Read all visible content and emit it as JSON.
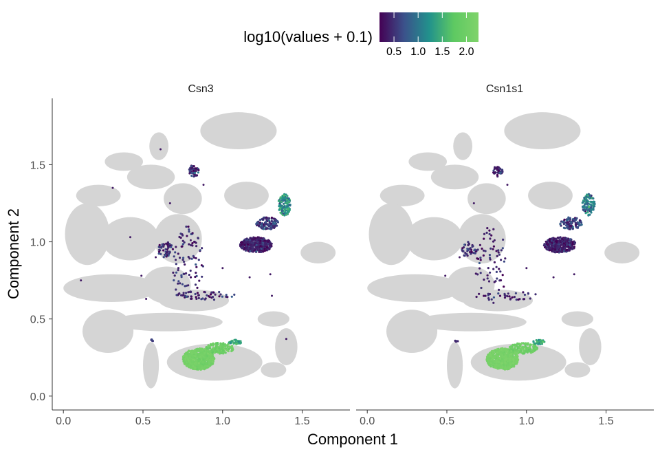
{
  "chart_data": {
    "type": "scatter",
    "xlabel": "Component 1",
    "ylabel": "Component 2",
    "xlim": [
      -0.07,
      1.8
    ],
    "ylim": [
      -0.09,
      1.93
    ],
    "x_ticks": [
      0.0,
      0.5,
      1.0,
      1.5
    ],
    "x_tick_labels": [
      "0.0",
      "0.5",
      "1.0",
      "1.5"
    ],
    "y_ticks": [
      0.0,
      0.5,
      1.0,
      1.5
    ],
    "y_tick_labels": [
      "0.0",
      "0.5",
      "1.0",
      "1.5"
    ],
    "grid": false,
    "legend": {
      "title": "log10(values + 0.1)",
      "placement": "top",
      "range": [
        0.2,
        2.25
      ],
      "ticks": [
        0.5,
        1.0,
        1.5,
        2.0
      ],
      "tick_labels": [
        "0.5",
        "1.0",
        "1.5",
        "2.0"
      ],
      "colormap": [
        "#440154",
        "#3b528b",
        "#21918c",
        "#5ec962",
        "#7fd36a"
      ]
    },
    "background_color": "#d3d3d3",
    "background_clusters": [
      {
        "cx": 1.1,
        "cy": 1.72,
        "rx": 0.24,
        "ry": 0.12
      },
      {
        "cx": 0.6,
        "cy": 1.62,
        "rx": 0.06,
        "ry": 0.09
      },
      {
        "cx": 0.38,
        "cy": 1.52,
        "rx": 0.12,
        "ry": 0.06
      },
      {
        "cx": 0.55,
        "cy": 1.42,
        "rx": 0.15,
        "ry": 0.08
      },
      {
        "cx": 0.22,
        "cy": 1.3,
        "rx": 0.14,
        "ry": 0.07
      },
      {
        "cx": 0.75,
        "cy": 1.28,
        "rx": 0.12,
        "ry": 0.1
      },
      {
        "cx": 1.15,
        "cy": 1.3,
        "rx": 0.14,
        "ry": 0.09
      },
      {
        "cx": 0.15,
        "cy": 1.05,
        "rx": 0.14,
        "ry": 0.2
      },
      {
        "cx": 0.42,
        "cy": 1.02,
        "rx": 0.18,
        "ry": 0.14
      },
      {
        "cx": 0.72,
        "cy": 1.02,
        "rx": 0.15,
        "ry": 0.16
      },
      {
        "cx": 1.6,
        "cy": 0.93,
        "rx": 0.11,
        "ry": 0.07
      },
      {
        "cx": 0.3,
        "cy": 0.7,
        "rx": 0.3,
        "ry": 0.09
      },
      {
        "cx": 0.65,
        "cy": 0.72,
        "rx": 0.15,
        "ry": 0.12
      },
      {
        "cx": 0.82,
        "cy": 0.62,
        "rx": 0.22,
        "ry": 0.07
      },
      {
        "cx": 0.65,
        "cy": 0.48,
        "rx": 0.35,
        "ry": 0.06
      },
      {
        "cx": 0.28,
        "cy": 0.42,
        "rx": 0.16,
        "ry": 0.14
      },
      {
        "cx": 0.55,
        "cy": 0.2,
        "rx": 0.05,
        "ry": 0.15
      },
      {
        "cx": 0.95,
        "cy": 0.22,
        "rx": 0.3,
        "ry": 0.12
      },
      {
        "cx": 1.32,
        "cy": 0.5,
        "rx": 0.1,
        "ry": 0.05
      },
      {
        "cx": 1.4,
        "cy": 0.32,
        "rx": 0.07,
        "ry": 0.12
      },
      {
        "cx": 1.32,
        "cy": 0.17,
        "rx": 0.08,
        "ry": 0.05
      }
    ],
    "series": [
      {
        "name": "Csn3",
        "clusters": [
          {
            "cx": 0.85,
            "cy": 0.24,
            "rx": 0.1,
            "ry": 0.07,
            "count": 650,
            "value": 2.1,
            "spread": 0.07
          },
          {
            "cx": 0.98,
            "cy": 0.31,
            "rx": 0.09,
            "ry": 0.035,
            "count": 160,
            "value": 2.0,
            "spread": 0.1
          },
          {
            "cx": 1.08,
            "cy": 0.35,
            "rx": 0.04,
            "ry": 0.015,
            "count": 40,
            "value": 1.4,
            "spread": 0.15
          },
          {
            "cx": 1.21,
            "cy": 0.98,
            "rx": 0.1,
            "ry": 0.05,
            "count": 420,
            "value": 0.4,
            "spread": 0.15
          },
          {
            "cx": 1.28,
            "cy": 1.12,
            "rx": 0.07,
            "ry": 0.04,
            "count": 110,
            "value": 0.6,
            "spread": 0.2
          },
          {
            "cx": 1.39,
            "cy": 1.24,
            "rx": 0.04,
            "ry": 0.07,
            "count": 130,
            "value": 1.2,
            "spread": 0.25
          },
          {
            "cx": 0.82,
            "cy": 1.46,
            "rx": 0.03,
            "ry": 0.04,
            "count": 60,
            "value": 0.5,
            "spread": 0.2
          },
          {
            "cx": 0.64,
            "cy": 0.95,
            "rx": 0.05,
            "ry": 0.05,
            "count": 50,
            "value": 0.5,
            "spread": 0.2
          },
          {
            "cx": 0.78,
            "cy": 0.85,
            "rx": 0.1,
            "ry": 0.25,
            "count": 90,
            "value": 0.45,
            "spread": 0.15
          },
          {
            "cx": 0.88,
            "cy": 0.65,
            "rx": 0.2,
            "ry": 0.03,
            "count": 50,
            "value": 0.45,
            "spread": 0.15
          },
          {
            "cx": 0.56,
            "cy": 0.36,
            "rx": 0.01,
            "ry": 0.01,
            "count": 6,
            "value": 0.5,
            "spread": 0.1
          }
        ],
        "scattered": [
          [
            0.11,
            0.75
          ],
          [
            0.31,
            1.35
          ],
          [
            0.42,
            1.03
          ],
          [
            0.61,
            1.6
          ],
          [
            0.67,
            1.25
          ],
          [
            0.88,
            1.37
          ],
          [
            1.0,
            0.83
          ],
          [
            1.3,
            0.79
          ],
          [
            1.17,
            0.77
          ],
          [
            1.31,
            0.65
          ],
          [
            1.4,
            0.37
          ],
          [
            0.52,
            0.63
          ],
          [
            0.49,
            0.78
          ],
          [
            0.58,
            0.9
          ],
          [
            0.8,
            1.01
          ]
        ]
      },
      {
        "name": "Csn1s1",
        "clusters": [
          {
            "cx": 0.85,
            "cy": 0.24,
            "rx": 0.1,
            "ry": 0.07,
            "count": 650,
            "value": 2.15,
            "spread": 0.06
          },
          {
            "cx": 0.98,
            "cy": 0.31,
            "rx": 0.09,
            "ry": 0.035,
            "count": 150,
            "value": 2.0,
            "spread": 0.1
          },
          {
            "cx": 1.08,
            "cy": 0.35,
            "rx": 0.04,
            "ry": 0.015,
            "count": 35,
            "value": 1.4,
            "spread": 0.15
          },
          {
            "cx": 1.21,
            "cy": 0.98,
            "rx": 0.1,
            "ry": 0.05,
            "count": 380,
            "value": 0.4,
            "spread": 0.15
          },
          {
            "cx": 1.28,
            "cy": 1.12,
            "rx": 0.07,
            "ry": 0.04,
            "count": 100,
            "value": 0.6,
            "spread": 0.2
          },
          {
            "cx": 1.39,
            "cy": 1.24,
            "rx": 0.04,
            "ry": 0.07,
            "count": 110,
            "value": 1.1,
            "spread": 0.25
          },
          {
            "cx": 0.82,
            "cy": 1.46,
            "rx": 0.03,
            "ry": 0.04,
            "count": 45,
            "value": 0.45,
            "spread": 0.2
          },
          {
            "cx": 0.64,
            "cy": 0.95,
            "rx": 0.05,
            "ry": 0.05,
            "count": 40,
            "value": 0.45,
            "spread": 0.2
          },
          {
            "cx": 0.78,
            "cy": 0.85,
            "rx": 0.1,
            "ry": 0.25,
            "count": 70,
            "value": 0.4,
            "spread": 0.15
          },
          {
            "cx": 0.88,
            "cy": 0.65,
            "rx": 0.2,
            "ry": 0.03,
            "count": 30,
            "value": 0.4,
            "spread": 0.15
          },
          {
            "cx": 0.56,
            "cy": 0.36,
            "rx": 0.01,
            "ry": 0.01,
            "count": 5,
            "value": 0.5,
            "spread": 0.1
          }
        ],
        "scattered": [
          [
            0.67,
            1.25
          ],
          [
            0.88,
            1.37
          ],
          [
            1.0,
            0.83
          ],
          [
            1.17,
            0.77
          ],
          [
            0.49,
            0.78
          ],
          [
            0.58,
            0.9
          ],
          [
            0.8,
            1.01
          ],
          [
            1.3,
            0.79
          ]
        ]
      }
    ]
  }
}
